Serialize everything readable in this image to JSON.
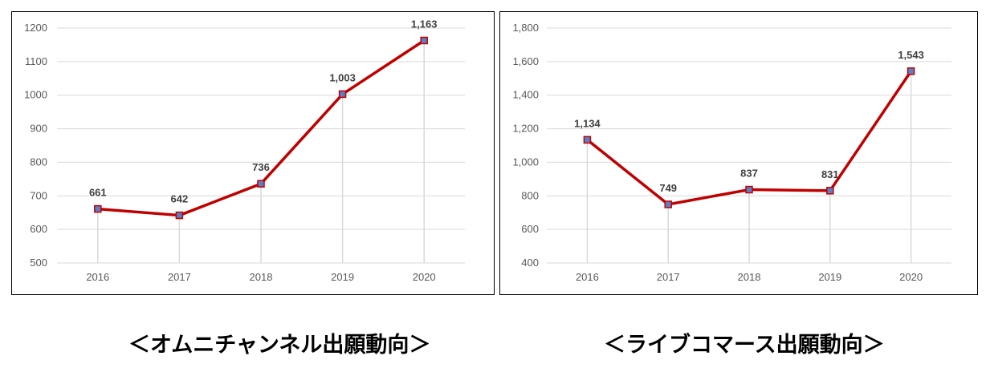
{
  "chart_data": [
    {
      "type": "line",
      "categories": [
        "2016",
        "2017",
        "2018",
        "2019",
        "2020"
      ],
      "values": [
        661,
        642,
        736,
        1003,
        1163
      ],
      "data_labels": [
        "661",
        "642",
        "736",
        "1,003",
        "1,163"
      ],
      "yticks": [
        "500",
        "600",
        "700",
        "800",
        "900",
        "1000",
        "1100",
        "1200"
      ],
      "ylim": [
        500,
        1200
      ],
      "grid": true,
      "line_color": "#c00000",
      "marker_color": "#5b7fc7",
      "caption": "＜オムニチャンネル出願動向＞"
    },
    {
      "type": "line",
      "categories": [
        "2016",
        "2017",
        "2018",
        "2019",
        "2020"
      ],
      "values": [
        1134,
        749,
        837,
        831,
        1543
      ],
      "data_labels": [
        "1,134",
        "749",
        "837",
        "831",
        "1,543"
      ],
      "yticks": [
        "400",
        "600",
        "800",
        "1,000",
        "1,200",
        "1,400",
        "1,600",
        "1,800"
      ],
      "ylim": [
        400,
        1800
      ],
      "grid": true,
      "line_color": "#c00000",
      "marker_color": "#5b7fc7",
      "caption": "＜ライブコマース出願動向＞"
    }
  ]
}
